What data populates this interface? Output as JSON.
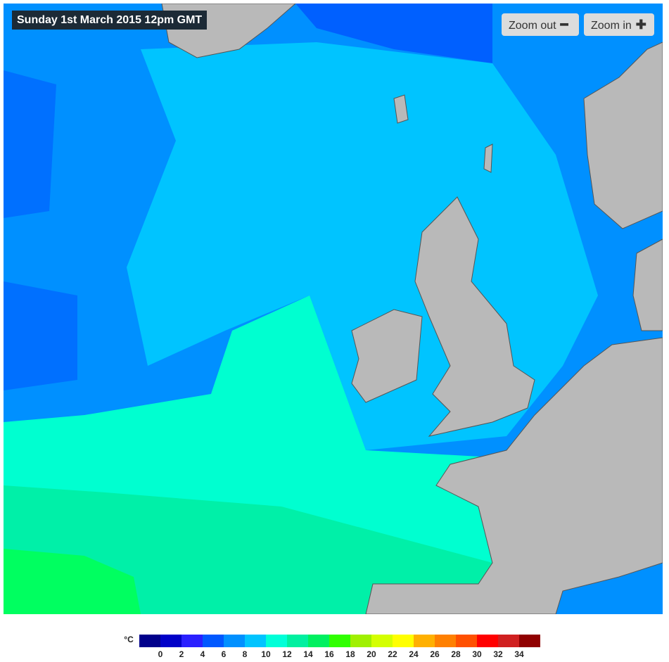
{
  "title": "Sunday 1st March 2015 12pm GMT",
  "buttons": {
    "zoom_out": "Zoom out",
    "zoom_in": "Zoom in"
  },
  "legend": {
    "unit": "°C",
    "colors": [
      "#00008b",
      "#0000c8",
      "#2a20ff",
      "#0058ff",
      "#0090ff",
      "#00c4ff",
      "#00ffd8",
      "#00f0a0",
      "#00f060",
      "#30ff00",
      "#a0f000",
      "#d4ff00",
      "#ffff00",
      "#ffb000",
      "#ff8000",
      "#ff5000",
      "#ff0000",
      "#d02020",
      "#900000"
    ],
    "labels": [
      0,
      2,
      4,
      6,
      8,
      10,
      12,
      14,
      16,
      18,
      20,
      22,
      24,
      26,
      28,
      30,
      32,
      34
    ]
  }
}
